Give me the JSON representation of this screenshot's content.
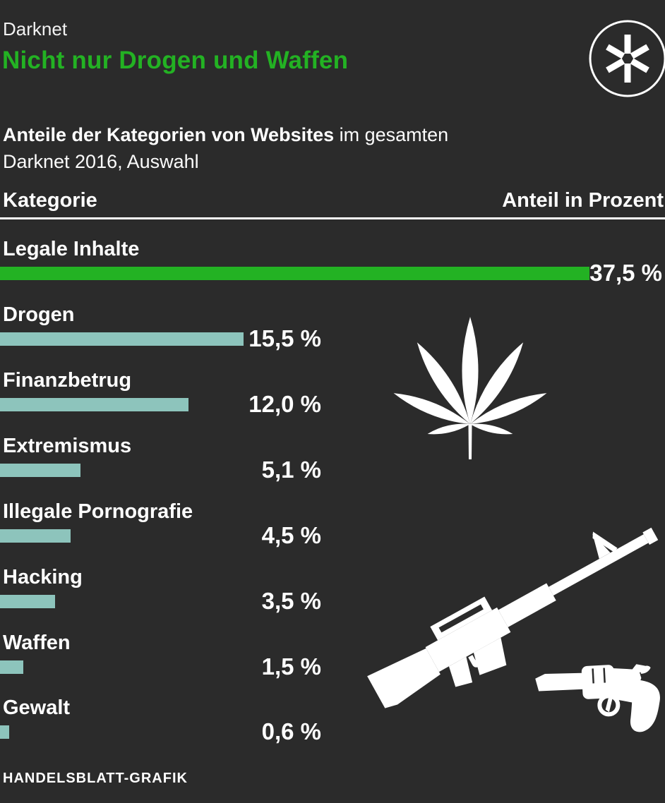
{
  "page": {
    "kicker": "Darknet",
    "title": "Nicht nur Drogen und Waffen",
    "subtitle": {
      "line1_bold": "Anteile der Kategorien von Websites",
      "line1_regular": " im gesamten",
      "line2": "Darknet 2016, Auswahl"
    },
    "source": "HANDELSBLATT-GRAFIK",
    "logo_icon": "asterisk-in-circle-icon"
  },
  "table_header": {
    "category": "Kategorie",
    "value": "Anteil in Prozent"
  },
  "chart_data": {
    "type": "bar",
    "orientation": "horizontal",
    "title": "Nicht nur Drogen und Waffen",
    "subtitle": "Anteile der Kategorien von Websites im gesamten Darknet 2016, Auswahl",
    "xlabel": "Anteil in Prozent",
    "ylabel": "Kategorie",
    "unit": "%",
    "xlim": [
      0,
      37.5
    ],
    "grid": false,
    "legend": "none",
    "categories": [
      "Legale Inhalte",
      "Drogen",
      "Finanzbetrug",
      "Extremismus",
      "Illegale Pornografie",
      "Hacking",
      "Waffen",
      "Gewalt"
    ],
    "values": [
      37.5,
      15.5,
      12.0,
      5.1,
      4.5,
      3.5,
      1.5,
      0.6
    ],
    "rows": [
      {
        "label": "Legale Inhalte",
        "value": 37.5,
        "display": "37,5 %",
        "highlight": true
      },
      {
        "label": "Drogen",
        "value": 15.5,
        "display": "15,5 %",
        "highlight": false
      },
      {
        "label": "Finanzbetrug",
        "value": 12.0,
        "display": "12,0 %",
        "highlight": false
      },
      {
        "label": "Extremismus",
        "value": 5.1,
        "display": "5,1 %",
        "highlight": false
      },
      {
        "label": "Illegale Pornografie",
        "value": 4.5,
        "display": "4,5 %",
        "highlight": false
      },
      {
        "label": "Hacking",
        "value": 3.5,
        "display": "3,5 %",
        "highlight": false
      },
      {
        "label": "Waffen",
        "value": 1.5,
        "display": "1,5 %",
        "highlight": false
      },
      {
        "label": "Gewalt",
        "value": 0.6,
        "display": "0,6 %",
        "highlight": false
      }
    ],
    "colors": {
      "background": "#2b2b2b",
      "highlight_bar": "#23b223",
      "bar": "#8dc4bc",
      "text": "#ffffff",
      "title_accent": "#23b223"
    },
    "decorative_icons": [
      "cannabis-leaf-icon",
      "rifle-icon",
      "revolver-icon"
    ]
  }
}
